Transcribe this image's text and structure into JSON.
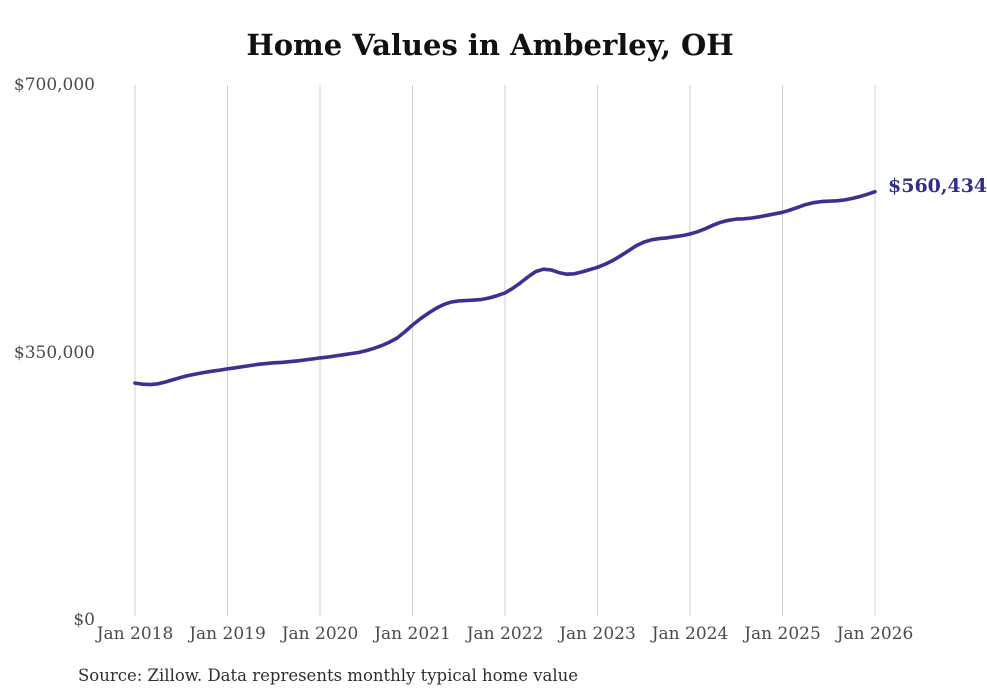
{
  "chart_data": {
    "type": "line",
    "title": "Home Values in Amberley, OH",
    "source": "Source: Zillow. Data represents monthly typical home value",
    "final_value": 560434,
    "final_value_label": "$560,434",
    "unit": "USD",
    "frequency": "monthly",
    "start_month": "2018-01",
    "end_month": "2026-01",
    "line_color": "#3a3191",
    "grid_color": "#cfcfcf",
    "ylim": [
      0,
      700000
    ],
    "y_ticks": [
      {
        "value": 0,
        "label": "$0"
      },
      {
        "value": 350000,
        "label": "$350,000"
      },
      {
        "value": 700000,
        "label": "$700,000"
      }
    ],
    "x_ticks": [
      "Jan 2018",
      "Jan 2019",
      "Jan 2020",
      "Jan 2021",
      "Jan 2022",
      "Jan 2023",
      "Jan 2024",
      "Jan 2025",
      "Jan 2026"
    ],
    "legend": "none",
    "grid": "vertical-only",
    "values": [
      310000,
      308500,
      308000,
      309000,
      311500,
      314500,
      317500,
      320000,
      322000,
      324000,
      325500,
      327000,
      328500,
      330000,
      331500,
      333000,
      334500,
      335500,
      336500,
      337000,
      338000,
      339000,
      340200,
      341500,
      343000,
      344000,
      345500,
      347000,
      348500,
      350000,
      352500,
      355500,
      359000,
      363500,
      369000,
      377000,
      386000,
      394000,
      401000,
      407500,
      412500,
      416000,
      417500,
      418000,
      418500,
      419500,
      421500,
      424500,
      428000,
      434000,
      441000,
      449000,
      456000,
      459000,
      458000,
      454500,
      452500,
      453000,
      455500,
      458500,
      461500,
      465500,
      470500,
      476500,
      483000,
      489500,
      494500,
      497500,
      499000,
      500000,
      501500,
      503000,
      505000,
      508000,
      512000,
      516500,
      520500,
      523000,
      524500,
      525000,
      526000,
      527500,
      529500,
      531500,
      533500,
      536500,
      540000,
      543500,
      546000,
      547500,
      548000,
      548500,
      549500,
      551500,
      554000,
      557000,
      560434
    ]
  }
}
